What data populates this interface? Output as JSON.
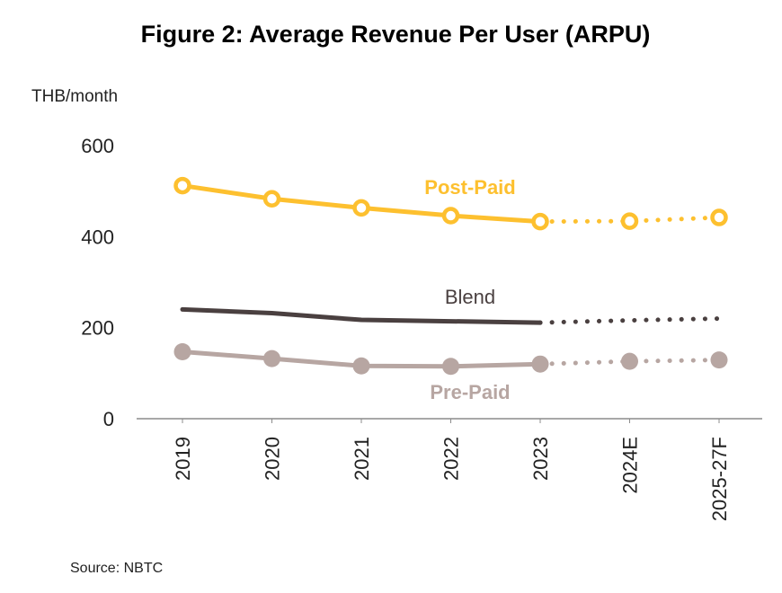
{
  "chart_data": {
    "type": "line",
    "title": "Figure 2: Average Revenue Per User (ARPU)",
    "ylabel": "THB/month",
    "xlabel": "",
    "categories": [
      "2019",
      "2020",
      "2021",
      "2022",
      "2023",
      "2024E",
      "2025-27F"
    ],
    "ylim": [
      0,
      600
    ],
    "yticks": [
      0,
      200,
      400,
      600
    ],
    "grid": false,
    "legend": "inline labels",
    "actual_count": 5,
    "series": [
      {
        "name": "Post-Paid",
        "color": "#FDC02F",
        "marker": "hollow-circle",
        "values": [
          512,
          483,
          463,
          446,
          433,
          434,
          442
        ]
      },
      {
        "name": "Blend",
        "color": "#4A4040",
        "marker": "none",
        "values": [
          240,
          232,
          217,
          214,
          211,
          216,
          220
        ]
      },
      {
        "name": "Pre-Paid",
        "color": "#B7A6A2",
        "marker": "filled-circle",
        "values": [
          147,
          132,
          116,
          115,
          120,
          126,
          129
        ]
      }
    ],
    "source": "Source: NBTC"
  }
}
